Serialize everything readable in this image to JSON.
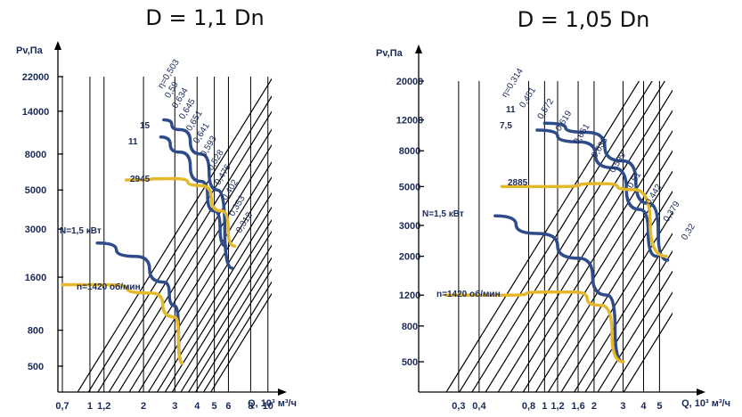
{
  "chart_data": [
    {
      "type": "line",
      "title": "D = 1,1 Dn",
      "ylabel": "Pv,Па",
      "xlabel": "Q, 10³ м³/ч",
      "x_scale": "log",
      "y_scale": "log",
      "x_ticks": [
        0.7,
        1,
        1.2,
        2,
        3,
        4,
        5,
        6,
        8,
        10
      ],
      "x_tick_labels": [
        "0,7",
        "1",
        "1,2",
        "2",
        "3",
        "4",
        "5",
        "6",
        "8",
        "10"
      ],
      "y_ticks": [
        500,
        800,
        1600,
        3000,
        5000,
        8000,
        14000,
        22000
      ],
      "y_tick_labels": [
        "500",
        "800",
        "1600",
        "3000",
        "5000",
        "8000",
        "14000",
        "22000"
      ],
      "efficiency_labels": [
        "η=0,503",
        "0,59",
        "0,634",
        "0,645",
        "0,651",
        "0,641",
        "0,593",
        "0,528",
        "0,476",
        "0,402",
        "0,353",
        "0,312"
      ],
      "annotations": {
        "power_high": "15",
        "power_mid": "11",
        "power_low": "N=1,5 кВт",
        "speed_high": "2945",
        "speed_low": "n=1420 об/мин"
      },
      "series": [
        {
          "name": "15",
          "color": "#2e4c8a",
          "points": [
            [
              2.6,
              12500
            ],
            [
              3.2,
              11000
            ],
            [
              4.2,
              8000
            ],
            [
              5.2,
              5000
            ],
            [
              6.3,
              1800
            ]
          ]
        },
        {
          "name": "11",
          "color": "#2e4c8a",
          "points": [
            [
              2.5,
              10000
            ],
            [
              3.2,
              8200
            ],
            [
              4.2,
              5600
            ],
            [
              5.0,
              3800
            ],
            [
              5.8,
              2400
            ]
          ]
        },
        {
          "name": "2945",
          "color": "#e5b82c",
          "points": [
            [
              1.6,
              5700
            ],
            [
              3.0,
              5800
            ],
            [
              4.2,
              5300
            ],
            [
              5.5,
              3800
            ],
            [
              6.5,
              2400
            ]
          ]
        },
        {
          "name": "N=1,5 кВт",
          "color": "#2e4c8a",
          "points": [
            [
              1.1,
              2500
            ],
            [
              1.8,
              2100
            ],
            [
              2.6,
              1500
            ],
            [
              3.0,
              1100
            ],
            [
              3.3,
              520
            ]
          ]
        },
        {
          "name": "n=1420 об/мин",
          "color": "#e5b82c",
          "points": [
            [
              0.7,
              1450
            ],
            [
              1.2,
              1450
            ],
            [
              2.2,
              1300
            ],
            [
              3.0,
              950
            ],
            [
              3.3,
              520
            ]
          ]
        }
      ]
    },
    {
      "type": "line",
      "title": "D = 1,05 Dn",
      "ylabel": "Pv,Па",
      "xlabel": "Q, 10³ м³/ч",
      "x_scale": "log",
      "y_scale": "log",
      "x_ticks": [
        0.3,
        0.4,
        0.8,
        1,
        1.2,
        1.6,
        2,
        3,
        4,
        5
      ],
      "x_tick_labels": [
        "0,3",
        "0,4",
        "0,8",
        "1",
        "1,2",
        "1,6",
        "2",
        "3",
        "4",
        "5"
      ],
      "y_ticks": [
        500,
        800,
        1200,
        2000,
        3000,
        5000,
        8000,
        12000,
        20000
      ],
      "y_tick_labels": [
        "500",
        "800",
        "1200",
        "2000",
        "3000",
        "5000",
        "8000",
        "12000",
        "20000"
      ],
      "efficiency_labels": [
        "η=0,314",
        "0,451",
        "0,572",
        "0,619",
        "0,661",
        "0,638",
        "0,599",
        "0,51",
        "0,442",
        "0,379",
        "0,32"
      ],
      "annotations": {
        "power_high": "11",
        "power_mid": "7,5",
        "power_low": "N=1,5 кВт",
        "speed_high": "2885",
        "speed_low": "n=1420 об/мин"
      },
      "series": [
        {
          "name": "11",
          "color": "#2e4c8a",
          "points": [
            [
              1.0,
              11500
            ],
            [
              1.8,
              10200
            ],
            [
              3.0,
              7000
            ],
            [
              4.3,
              4000
            ],
            [
              5.6,
              1900
            ]
          ]
        },
        {
          "name": "7,5",
          "color": "#2e4c8a",
          "points": [
            [
              0.9,
              10500
            ],
            [
              1.6,
              9000
            ],
            [
              2.6,
              6400
            ],
            [
              3.8,
              3700
            ],
            [
              4.8,
              2000
            ]
          ]
        },
        {
          "name": "2885",
          "color": "#e5b82c",
          "points": [
            [
              0.55,
              5000
            ],
            [
              1.2,
              5000
            ],
            [
              2.2,
              5200
            ],
            [
              3.5,
              4800
            ],
            [
              5.5,
              2000
            ]
          ]
        },
        {
          "name": "N=1,5 кВт",
          "color": "#2e4c8a",
          "points": [
            [
              0.5,
              3400
            ],
            [
              0.9,
              2700
            ],
            [
              1.6,
              1950
            ],
            [
              2.4,
              1200
            ],
            [
              3.0,
              500
            ]
          ]
        },
        {
          "name": "n=1420 об/мин",
          "color": "#e5b82c",
          "points": [
            [
              0.25,
              1200
            ],
            [
              0.6,
              1200
            ],
            [
              1.0,
              1250
            ],
            [
              1.5,
              1250
            ],
            [
              2.2,
              1050
            ],
            [
              3.0,
              500
            ]
          ]
        }
      ]
    }
  ]
}
